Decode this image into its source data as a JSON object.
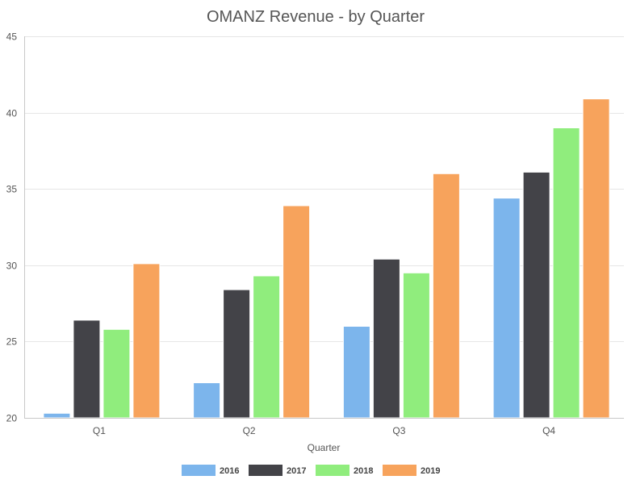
{
  "chart_data": {
    "type": "bar",
    "title": "OMANZ Revenue - by Quarter",
    "xlabel": "Quarter",
    "ylabel": "",
    "categories": [
      "Q1",
      "Q2",
      "Q3",
      "Q4"
    ],
    "ylim": [
      20,
      45
    ],
    "yticks": [
      20,
      25,
      30,
      35,
      40,
      45
    ],
    "grid": true,
    "legend_position": "bottom",
    "series": [
      {
        "name": "2016",
        "color": "#7cb5ec",
        "values": [
          20.3,
          22.3,
          26.0,
          34.4
        ]
      },
      {
        "name": "2017",
        "color": "#434348",
        "values": [
          26.4,
          28.4,
          30.4,
          36.1
        ]
      },
      {
        "name": "2018",
        "color": "#90ed7d",
        "values": [
          25.8,
          29.3,
          29.5,
          39.0
        ]
      },
      {
        "name": "2019",
        "color": "#f7a35c",
        "values": [
          30.1,
          33.9,
          36.0,
          40.9
        ]
      }
    ]
  }
}
